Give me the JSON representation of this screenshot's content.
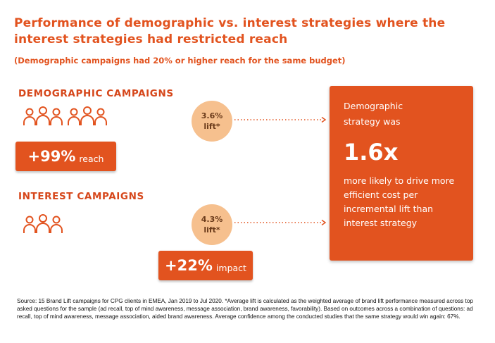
{
  "title": "Performance of demographic vs. interest strategies where the interest strategies had restricted reach",
  "subtitle": "(Demographic campaigns had 20% or higher reach for the same budget)",
  "demographic": {
    "label": "DEMOGRAPHIC CAMPAIGNS",
    "people_icons": 2,
    "stat_value": "+99%",
    "stat_unit": "reach",
    "lift_value": "3.6%",
    "lift_label": "lift*"
  },
  "interest": {
    "label": "INTEREST CAMPAIGNS",
    "people_icons": 1,
    "stat_value": "+22%",
    "stat_unit": "impact",
    "lift_value": "4.3%",
    "lift_label": "lift*"
  },
  "result": {
    "intro": "Demographic strategy was",
    "multiplier": "1.6x",
    "description": "more likely to drive more efficient cost per incremental lift than interest strategy"
  },
  "source": "Source: 15 Brand Lift campaigns for CPG clients in EMEA, Jan 2019 to Jul 2020. *Average lift is calculated as the weighted average of brand lift performance measured across top asked questions for the sample (ad recall, top of mind awareness, message association, brand awareness, favorability).  Based on outcomes across a combination of questions: ad recall, top of mind awareness, message association, aided brand awareness. Average confidence among the conducted studies that the same strategy would win again: 67%.",
  "colors": {
    "accent": "#e2531f",
    "lift_circle": "#f6c08e"
  }
}
